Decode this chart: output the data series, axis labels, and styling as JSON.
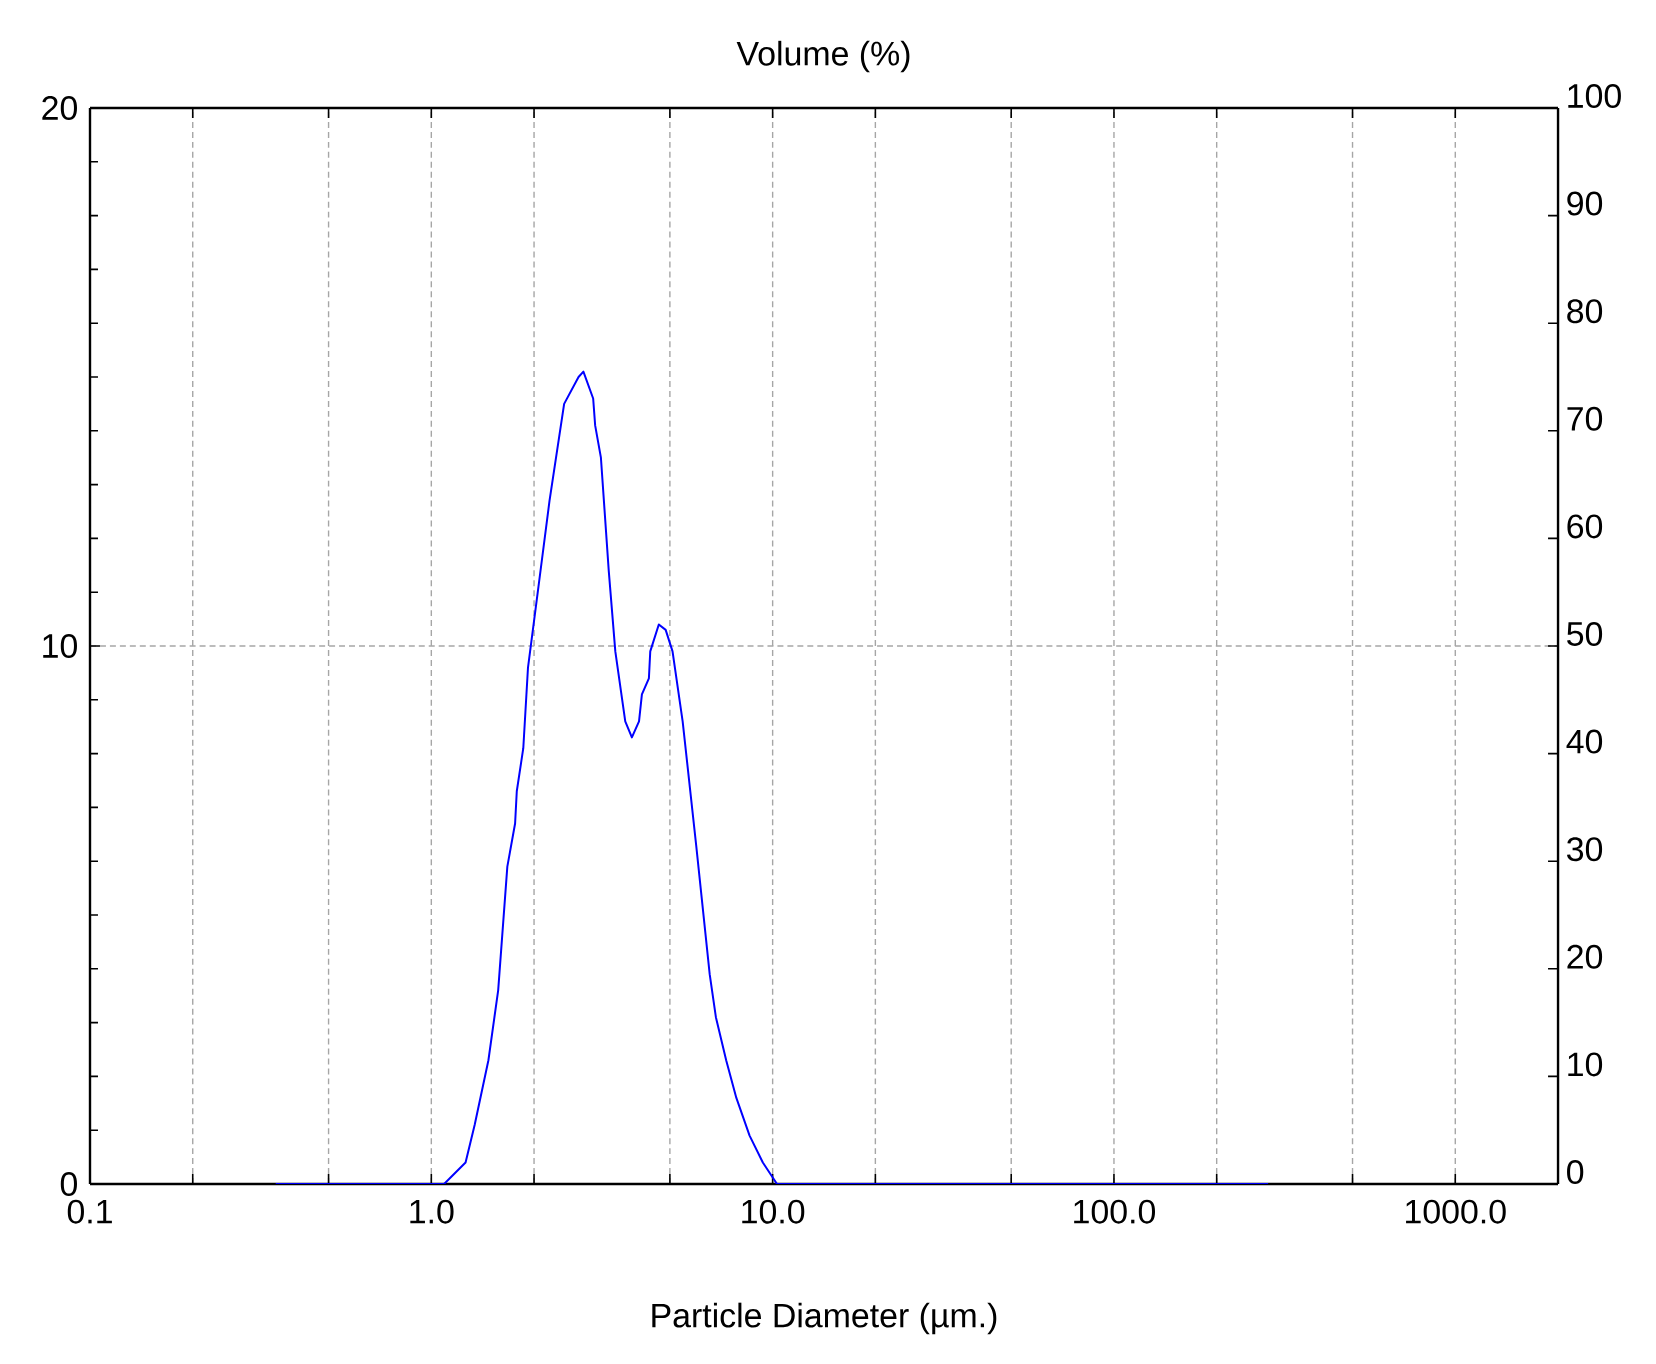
{
  "chart_data": {
    "type": "line",
    "title": "Volume (%)",
    "xlabel": "Particle Diameter (µm.)",
    "log": "x",
    "grid": true,
    "line_style": "solid",
    "xlim": [
      0.1,
      2000
    ],
    "ylim": [
      0,
      20
    ],
    "y2lim": [
      0,
      100
    ],
    "xticks": [
      0.1,
      {
        "value": 0.2,
        "label": null
      },
      {
        "value": 0.5,
        "label": null
      },
      {
        "value": 1,
        "label": "1.0"
      },
      {
        "value": 2,
        "label": null
      },
      {
        "value": 5,
        "label": null
      },
      {
        "value": 10,
        "label": "10.0"
      },
      {
        "value": 20,
        "label": null
      },
      {
        "value": 50,
        "label": null
      },
      {
        "value": 100,
        "label": "100.0"
      },
      {
        "value": 200,
        "label": null
      },
      {
        "value": 500,
        "label": null
      },
      {
        "value": 1000,
        "label": "1000.0"
      }
    ],
    "yticks": [
      0,
      10,
      20
    ],
    "y2ticks": [
      0,
      10,
      20,
      30,
      40,
      50,
      60,
      70,
      80,
      90,
      100
    ],
    "series": [
      {
        "color": "#0000ff",
        "x": [
          0.35,
          1.09,
          1.26,
          1.34,
          1.47,
          1.57,
          1.67,
          1.76,
          1.78,
          1.86,
          1.92,
          2.06,
          2.22,
          2.45,
          2.7,
          2.79,
          2.98,
          3.02,
          3.14,
          3.31,
          3.46,
          3.7,
          3.87,
          4.06,
          4.14,
          4.34,
          4.38,
          4.64,
          4.86,
          5.09,
          5.45,
          5.97,
          6.54,
          6.82,
          7.31,
          7.83,
          8.56,
          9.36,
          10.3,
          283
        ],
        "values": [
          0,
          0,
          0.4,
          1.1,
          2.3,
          3.6,
          5.9,
          6.7,
          7.3,
          8.1,
          9.6,
          11.1,
          12.7,
          14.5,
          15.0,
          15.1,
          14.6,
          14.1,
          13.5,
          11.4,
          9.9,
          8.6,
          8.3,
          8.6,
          9.1,
          9.4,
          9.9,
          10.4,
          10.3,
          9.9,
          8.6,
          6.3,
          3.9,
          3.1,
          2.3,
          1.6,
          0.9,
          0.4,
          0,
          0
        ]
      }
    ]
  }
}
